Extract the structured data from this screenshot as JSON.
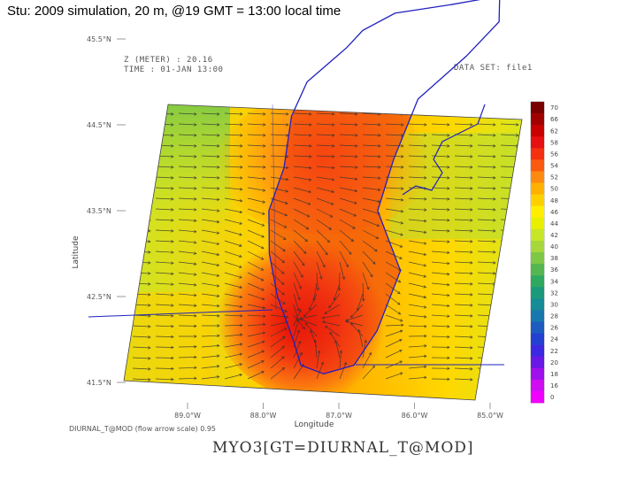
{
  "slide": {
    "title": "Stu: 2009 simulation, 20 m, @19 GMT = 13:00 local time"
  },
  "plot": {
    "header_line1": "Z (METER) : 20.16",
    "header_line2": "TIME : 01-JAN 13:00",
    "dataset_label": "DATA SET: file1",
    "xlabel": "Longitude",
    "ylabel": "Latitude",
    "lat_ticks": [
      "45.5°N",
      "44.5°N",
      "43.5°N",
      "42.5°N",
      "41.5°N"
    ],
    "lon_ticks": [
      "89.0°W",
      "88.0°W",
      "87.0°W",
      "86.0°W",
      "85.0°W"
    ],
    "footnote": "DIURNAL_T@MOD  (flow arrow scale) 0.95",
    "command": "MYO3[GT=DIURNAL_T@MOD]"
  },
  "colorbar": {
    "labels": [
      "70",
      "66",
      "62",
      "58",
      "56",
      "54",
      "52",
      "50",
      "48",
      "46",
      "44",
      "42",
      "40",
      "38",
      "36",
      "34",
      "32",
      "30",
      "28",
      "26",
      "24",
      "22",
      "20",
      "18",
      "16",
      "0"
    ],
    "colors": [
      "#7a0000",
      "#a00000",
      "#c80000",
      "#e61010",
      "#f43010",
      "#fa5a10",
      "#fd8a10",
      "#ffb000",
      "#ffd000",
      "#ffee00",
      "#e8f000",
      "#c8e628",
      "#a6d83c",
      "#7ec846",
      "#54b64e",
      "#2fa860",
      "#1a9a7a",
      "#168c96",
      "#1878ae",
      "#1c5cc0",
      "#2440d0",
      "#3c28e0",
      "#6a18e6",
      "#a010ec",
      "#d00cf0",
      "#f000ff"
    ]
  },
  "map_data": {
    "lat_range": [
      41.2,
      46.2
    ],
    "lon_range": [
      89.9,
      84.6
    ],
    "lake_michigan_shore_lat_lon": [
      [
        46.0,
        85.0
      ],
      [
        45.9,
        85.6
      ],
      [
        45.8,
        86.3
      ],
      [
        45.6,
        86.7
      ],
      [
        45.4,
        86.9
      ],
      [
        45.0,
        87.4
      ],
      [
        44.6,
        87.6
      ],
      [
        44.0,
        87.7
      ],
      [
        43.5,
        87.9
      ],
      [
        43.0,
        87.9
      ],
      [
        42.5,
        87.8
      ],
      [
        42.0,
        87.6
      ],
      [
        41.7,
        87.5
      ],
      [
        41.6,
        87.2
      ],
      [
        41.7,
        86.8
      ],
      [
        42.1,
        86.5
      ],
      [
        42.8,
        86.2
      ],
      [
        43.5,
        86.5
      ],
      [
        44.1,
        86.3
      ],
      [
        44.8,
        86.0
      ],
      [
        45.3,
        85.4
      ],
      [
        45.7,
        85.0
      ],
      [
        46.0,
        85.0
      ]
    ]
  }
}
